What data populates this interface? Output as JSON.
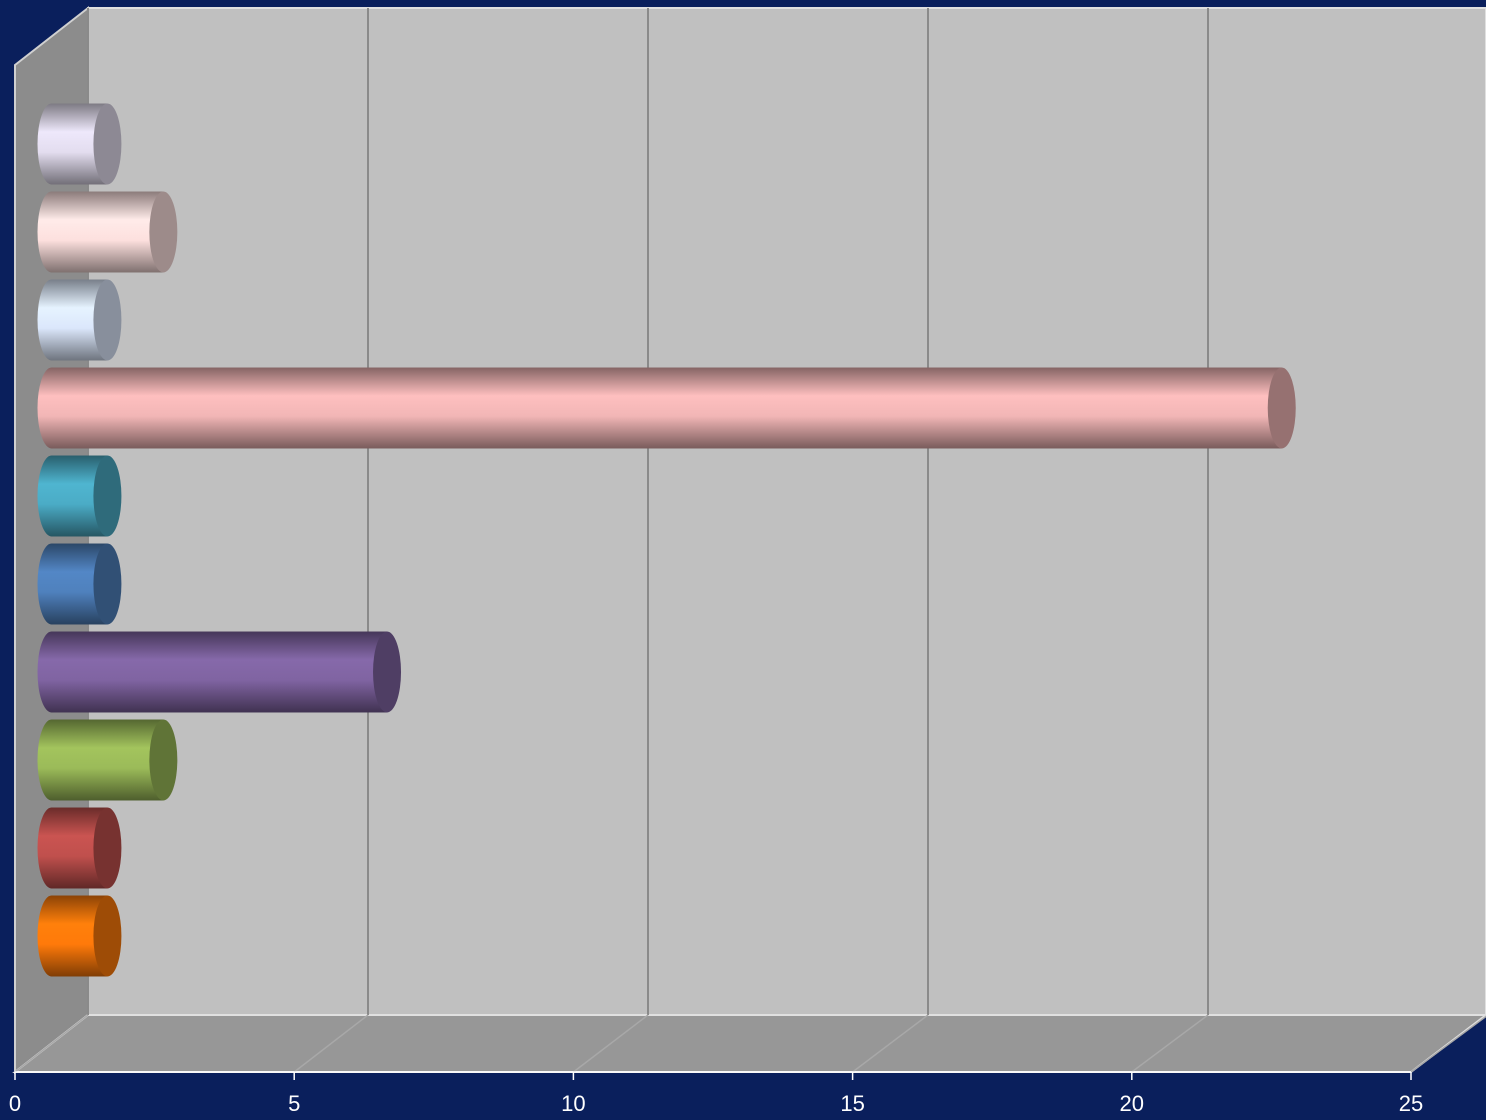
{
  "chart_data": {
    "type": "bar",
    "orientation": "horizontal",
    "categories": [
      null,
      null,
      null,
      null,
      null,
      null,
      null,
      null,
      null,
      null
    ],
    "values": [
      1,
      1,
      2,
      6,
      1,
      1,
      22,
      1,
      2,
      1
    ],
    "colors": [
      "#ff7a0a",
      "#c0504d",
      "#9bbb59",
      "#8064a2",
      "#4f81bd",
      "#4bacc6",
      "#f2b6b6",
      "#dbe7fb",
      "#fde0de",
      "#e3ddef"
    ],
    "xlim": [
      0,
      25
    ],
    "xticks": [
      0,
      5,
      10,
      15,
      20,
      25
    ],
    "grid": true
  }
}
